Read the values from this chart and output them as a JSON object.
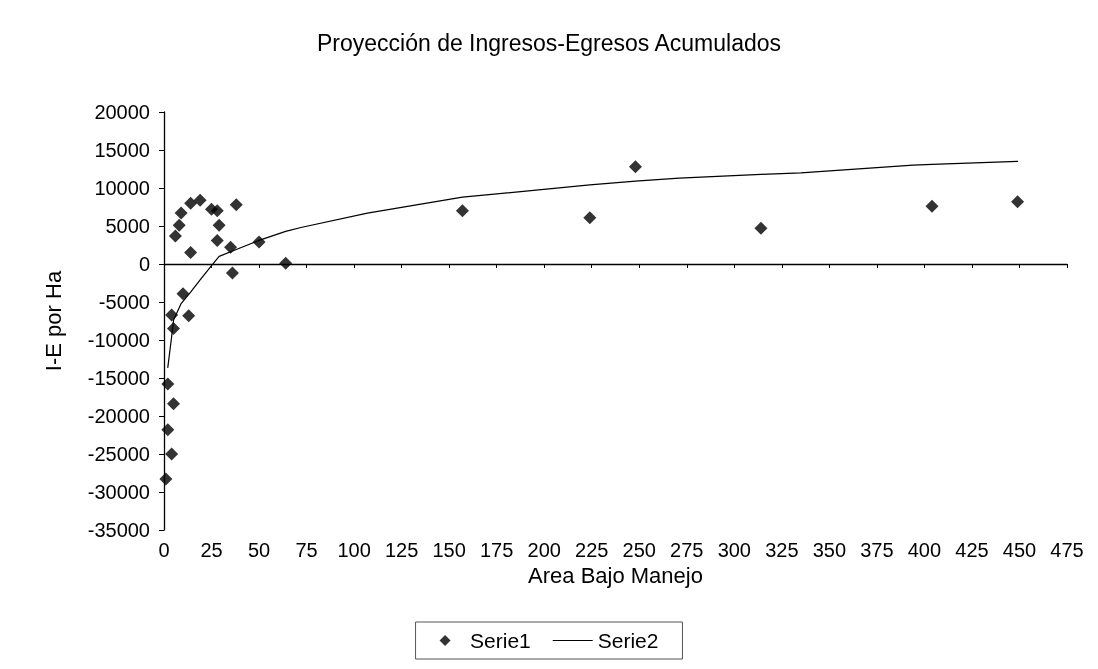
{
  "chart_data": {
    "type": "scatter",
    "title": "Proyección de Ingresos-Egresos Acumulados",
    "xlabel": "Area Bajo Manejo",
    "ylabel": "I-E por Ha",
    "xlim": [
      0,
      475
    ],
    "xticks": [
      0,
      25,
      50,
      75,
      100,
      125,
      150,
      175,
      200,
      225,
      250,
      275,
      300,
      325,
      350,
      375,
      400,
      425,
      450,
      475
    ],
    "ylim": [
      -35000,
      20000
    ],
    "yticks": [
      -35000,
      -30000,
      -25000,
      -20000,
      -15000,
      -10000,
      -5000,
      0,
      5000,
      10000,
      15000,
      20000
    ],
    "legend": "bottom",
    "series": [
      {
        "name": "Serie1",
        "marker": "diamond",
        "color": "#000000",
        "x": [
          1,
          2,
          2,
          4,
          4,
          5,
          5,
          6,
          8,
          9,
          10,
          13,
          14,
          14,
          19,
          25,
          28,
          28,
          29,
          35,
          36,
          38,
          50,
          64,
          157,
          224,
          248,
          314,
          404,
          449
        ],
        "values": [
          -28300,
          -15800,
          -21800,
          -25000,
          -6700,
          -8500,
          -18400,
          3700,
          5100,
          6700,
          -3900,
          -6800,
          8000,
          1500,
          8400,
          7200,
          7000,
          3100,
          5100,
          2200,
          -1200,
          7800,
          2900,
          100,
          7000,
          6100,
          12800,
          4700,
          7600,
          8200
        ]
      },
      {
        "name": "Serie2",
        "type": "line",
        "marker": "none",
        "color": "#000000",
        "x": [
          2,
          4,
          5,
          9,
          14,
          19,
          25,
          29,
          38,
          50,
          64,
          72,
          107,
          157,
          224,
          248,
          271,
          314,
          335,
          394,
          404,
          449
        ],
        "values": [
          -13600,
          -9600,
          -7400,
          -5200,
          -3700,
          -2100,
          -200,
          1000,
          1900,
          3100,
          4300,
          4800,
          6700,
          8800,
          10400,
          10900,
          11300,
          11800,
          12000,
          13000,
          13100,
          13500
        ]
      }
    ]
  }
}
